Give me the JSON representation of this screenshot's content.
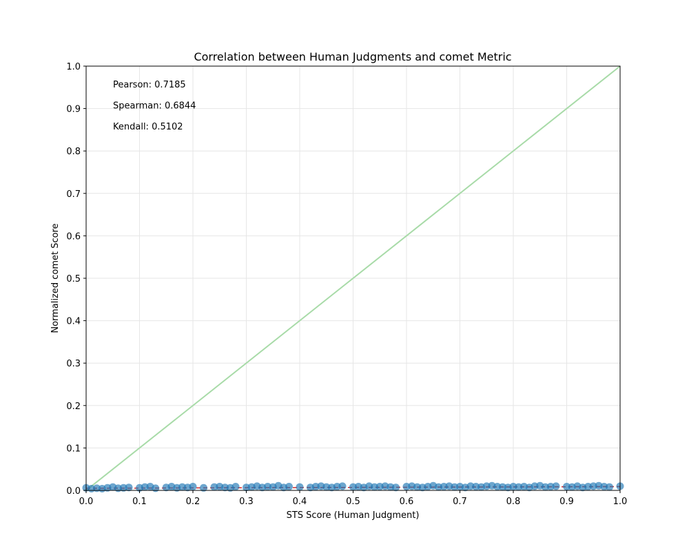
{
  "chart_data": {
    "type": "scatter",
    "title": "Correlation between Human Judgments and comet Metric",
    "xlabel": "STS Score (Human Judgment)",
    "ylabel": "Normalized comet Score",
    "xlim": [
      0.0,
      1.0
    ],
    "ylim": [
      0.0,
      1.0
    ],
    "xticks": [
      "0.0",
      "0.1",
      "0.2",
      "0.3",
      "0.4",
      "0.5",
      "0.6",
      "0.7",
      "0.8",
      "0.9",
      "1.0"
    ],
    "yticks": [
      "0.0",
      "0.1",
      "0.2",
      "0.3",
      "0.4",
      "0.5",
      "0.6",
      "0.7",
      "0.8",
      "0.9",
      "1.0"
    ],
    "grid": true,
    "annotations": [
      "Pearson: 0.7185",
      "Spearman: 0.6844",
      "Kendall: 0.5102"
    ],
    "reference_line": {
      "from": [
        0.0,
        0.0
      ],
      "to": [
        1.0,
        1.0
      ],
      "color": "#a8dba8"
    },
    "trend_line": {
      "from": [
        0.0,
        0.005
      ],
      "to": [
        1.0,
        0.009
      ],
      "color": "#d62728"
    },
    "point_color": "#1f77b4",
    "points": {
      "x": [
        0.0,
        0.01,
        0.02,
        0.03,
        0.04,
        0.05,
        0.06,
        0.07,
        0.08,
        0.1,
        0.11,
        0.12,
        0.13,
        0.15,
        0.16,
        0.17,
        0.18,
        0.19,
        0.2,
        0.22,
        0.24,
        0.25,
        0.26,
        0.27,
        0.28,
        0.3,
        0.31,
        0.32,
        0.33,
        0.34,
        0.35,
        0.36,
        0.37,
        0.38,
        0.4,
        0.42,
        0.43,
        0.44,
        0.45,
        0.46,
        0.47,
        0.48,
        0.5,
        0.51,
        0.52,
        0.53,
        0.54,
        0.55,
        0.56,
        0.57,
        0.58,
        0.6,
        0.61,
        0.62,
        0.63,
        0.64,
        0.65,
        0.66,
        0.67,
        0.68,
        0.69,
        0.7,
        0.71,
        0.72,
        0.73,
        0.74,
        0.75,
        0.76,
        0.77,
        0.78,
        0.79,
        0.8,
        0.81,
        0.82,
        0.83,
        0.84,
        0.85,
        0.86,
        0.87,
        0.88,
        0.9,
        0.91,
        0.92,
        0.93,
        0.94,
        0.95,
        0.96,
        0.97,
        0.98,
        1.0
      ],
      "y": [
        0.006,
        0.004,
        0.005,
        0.004,
        0.006,
        0.008,
        0.005,
        0.006,
        0.007,
        0.006,
        0.008,
        0.009,
        0.005,
        0.007,
        0.009,
        0.006,
        0.008,
        0.007,
        0.009,
        0.006,
        0.008,
        0.009,
        0.007,
        0.006,
        0.009,
        0.007,
        0.008,
        0.01,
        0.007,
        0.009,
        0.008,
        0.011,
        0.007,
        0.009,
        0.008,
        0.007,
        0.009,
        0.01,
        0.008,
        0.007,
        0.009,
        0.01,
        0.008,
        0.009,
        0.007,
        0.01,
        0.008,
        0.009,
        0.01,
        0.008,
        0.007,
        0.009,
        0.01,
        0.008,
        0.007,
        0.009,
        0.011,
        0.008,
        0.009,
        0.01,
        0.008,
        0.009,
        0.007,
        0.01,
        0.009,
        0.008,
        0.01,
        0.011,
        0.009,
        0.008,
        0.007,
        0.009,
        0.008,
        0.009,
        0.007,
        0.01,
        0.011,
        0.008,
        0.009,
        0.01,
        0.009,
        0.008,
        0.01,
        0.007,
        0.009,
        0.01,
        0.011,
        0.009,
        0.008,
        0.01
      ]
    }
  }
}
